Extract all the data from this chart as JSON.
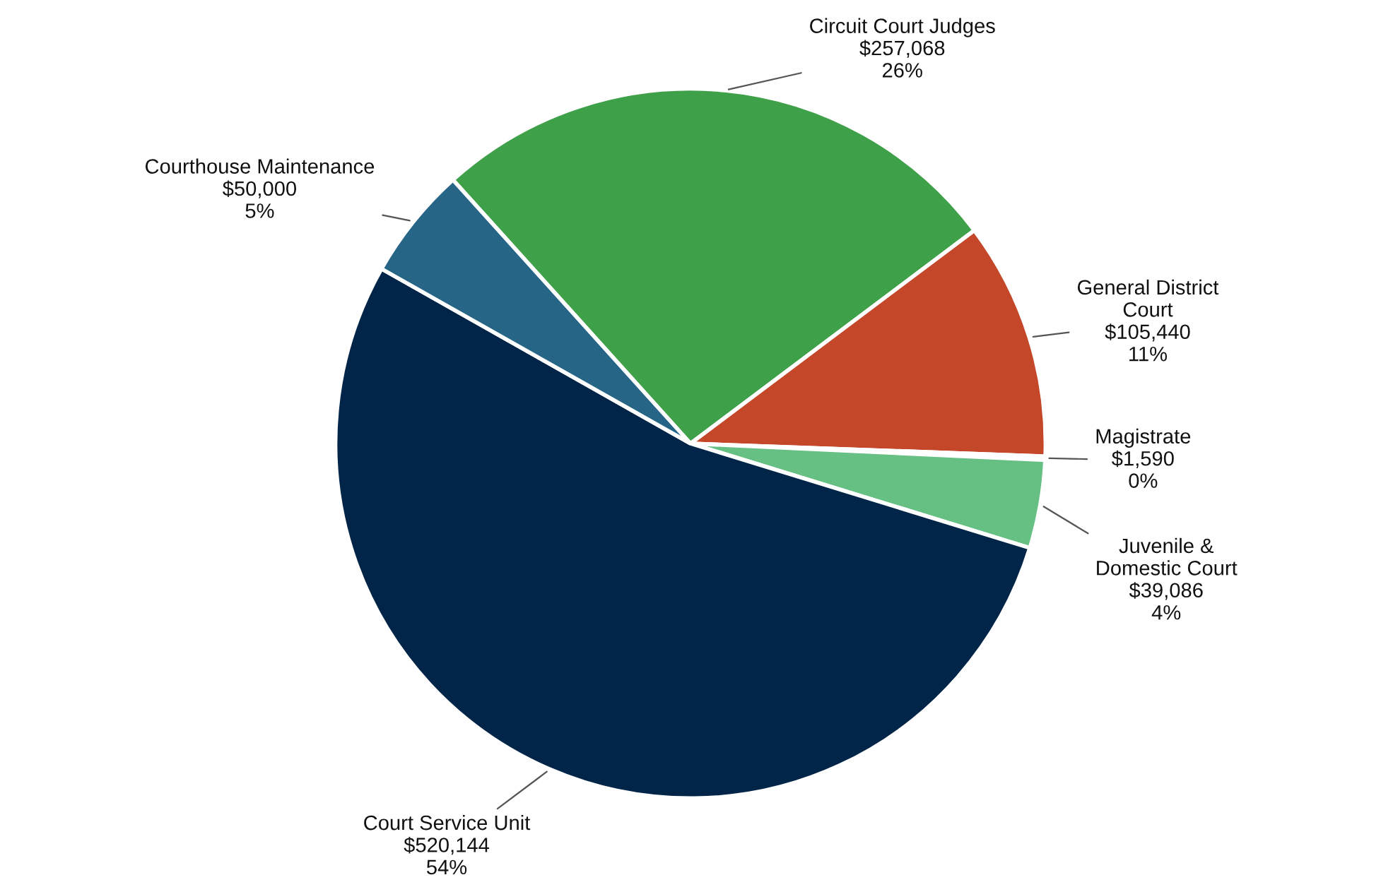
{
  "chart_data": {
    "type": "pie",
    "categories": [
      "Circuit Court Judges",
      "General District\nCourt",
      "Magistrate",
      "Juvenile &\nDomestic Court",
      "Court Service Unit",
      "Courthouse Maintenance"
    ],
    "values": [
      257068,
      105440,
      1590,
      39086,
      520144,
      50000
    ],
    "value_labels": [
      "$257,068\n26%",
      "$105,440\n11%",
      "$1,590\n0%",
      "$39,086\n4%",
      "$520,144\n54%",
      "$50,000\n5%"
    ],
    "colors": [
      "#3fa04a",
      "#c4472a",
      "#e8a33a",
      "#67c083",
      "#002548",
      "#266586"
    ],
    "legend": false
  }
}
